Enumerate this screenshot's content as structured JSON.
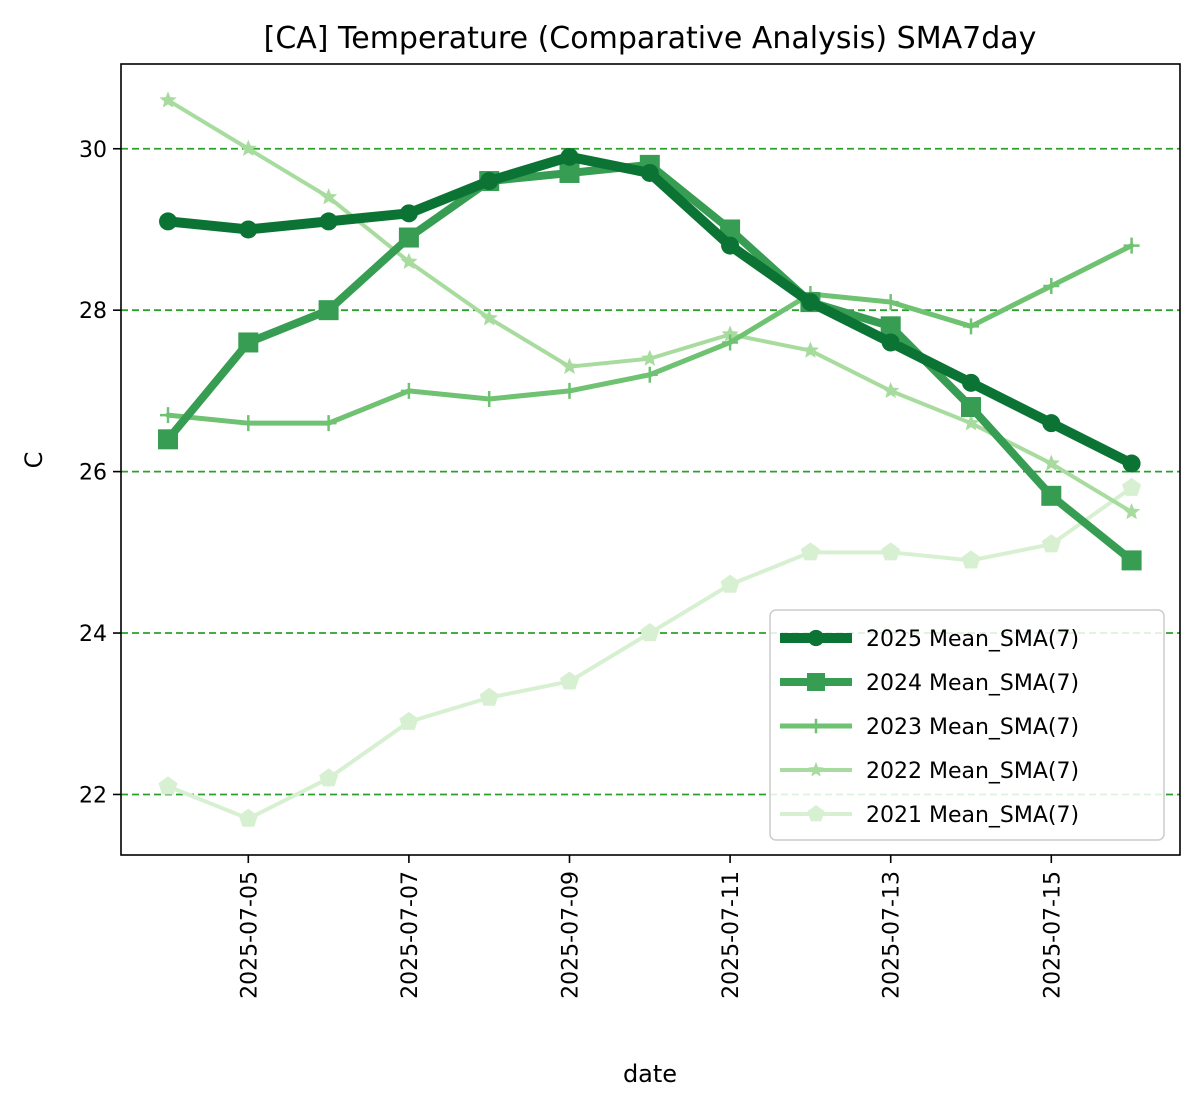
{
  "chart_data": {
    "type": "line",
    "title": "[CA] Temperature (Comparative Analysis) SMA7day",
    "xlabel": "date",
    "ylabel": "C",
    "x": [
      "2025-07-04",
      "2025-07-05",
      "2025-07-06",
      "2025-07-07",
      "2025-07-08",
      "2025-07-09",
      "2025-07-10",
      "2025-07-11",
      "2025-07-12",
      "2025-07-13",
      "2025-07-14",
      "2025-07-15",
      "2025-07-16"
    ],
    "xticks": [
      "2025-07-05",
      "2025-07-07",
      "2025-07-09",
      "2025-07-11",
      "2025-07-13",
      "2025-07-15"
    ],
    "yticks": [
      22,
      24,
      26,
      28,
      30
    ],
    "ylim": [
      21.25,
      31.05
    ],
    "grid": "horizontal dashed",
    "grid_color": "#2ca02c",
    "legend_position": "lower-right",
    "series": [
      {
        "name": "2025 Mean_SMA(7)",
        "color": "#0b7434",
        "marker": "circle",
        "values": [
          29.1,
          29.0,
          29.1,
          29.2,
          29.6,
          29.9,
          29.7,
          28.8,
          28.1,
          27.6,
          27.1,
          26.6,
          26.1
        ]
      },
      {
        "name": "2024 Mean_SMA(7)",
        "color": "#379d52",
        "marker": "square",
        "values": [
          26.4,
          27.6,
          28.0,
          28.9,
          29.6,
          29.7,
          29.8,
          29.0,
          28.1,
          27.8,
          26.8,
          25.7,
          24.9
        ]
      },
      {
        "name": "2023 Mean_SMA(7)",
        "color": "#6fc271",
        "marker": "plus",
        "values": [
          26.7,
          26.6,
          26.6,
          27.0,
          26.9,
          27.0,
          27.2,
          27.6,
          28.2,
          28.1,
          27.8,
          28.3,
          28.8
        ]
      },
      {
        "name": "2022 Mean_SMA(7)",
        "color": "#a8dc9f",
        "marker": "star",
        "values": [
          30.6,
          30.0,
          29.4,
          28.6,
          27.9,
          27.3,
          27.4,
          27.7,
          27.5,
          27.0,
          26.6,
          26.1,
          25.5
        ]
      },
      {
        "name": "2021 Mean_SMA(7)",
        "color": "#d8f0d2",
        "marker": "pentagon",
        "values": [
          22.1,
          21.7,
          22.2,
          22.9,
          23.2,
          23.4,
          24.0,
          24.6,
          25.0,
          25.0,
          24.9,
          25.1,
          25.8
        ]
      }
    ]
  }
}
